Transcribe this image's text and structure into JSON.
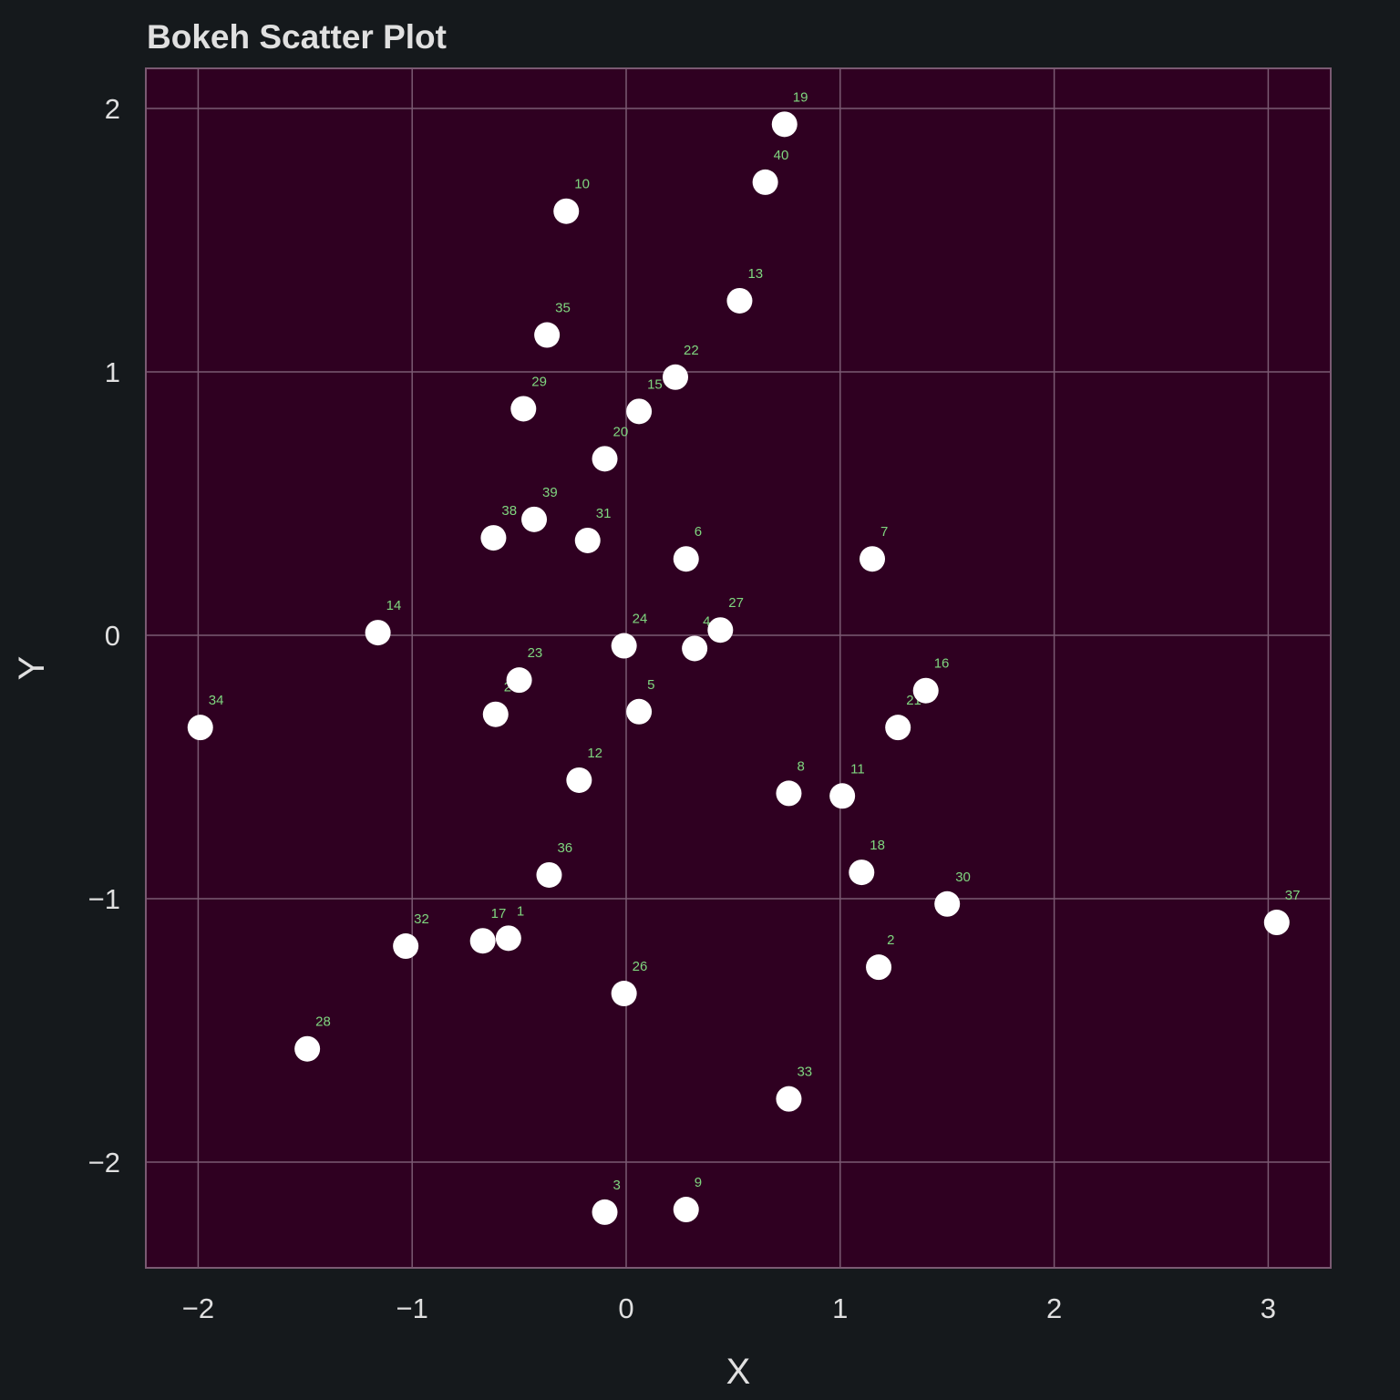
{
  "chart_data": {
    "type": "scatter",
    "title": "Bokeh Scatter Plot",
    "xlabel": "X",
    "ylabel": "Y",
    "xlim": [
      -2.25,
      3.28
    ],
    "ylim": [
      -2.4,
      2.15
    ],
    "xticks": [
      -2,
      -1,
      0,
      1,
      2,
      3
    ],
    "yticks": [
      -2,
      -1,
      0,
      1,
      2
    ],
    "xtick_labels": [
      "−2",
      "−1",
      "0",
      "1",
      "2",
      "3"
    ],
    "ytick_labels": [
      "−2",
      "−1",
      "0",
      "1",
      "2"
    ],
    "grid": true,
    "colors": {
      "background": "#15191c",
      "plot_bg": "#2f0021",
      "grid": "#7a5a72",
      "point": "#ffffff",
      "label": "#7fd67f",
      "text": "#e0e0e0"
    },
    "points": [
      {
        "id": "1",
        "x": -0.55,
        "y": -1.15
      },
      {
        "id": "2",
        "x": 1.18,
        "y": -1.26
      },
      {
        "id": "3",
        "x": -0.1,
        "y": -2.19
      },
      {
        "id": "4",
        "x": 0.32,
        "y": -0.05
      },
      {
        "id": "5",
        "x": 0.06,
        "y": -0.29
      },
      {
        "id": "6",
        "x": 0.28,
        "y": 0.29
      },
      {
        "id": "7",
        "x": 1.15,
        "y": 0.29
      },
      {
        "id": "8",
        "x": 0.76,
        "y": -0.6
      },
      {
        "id": "9",
        "x": 0.28,
        "y": -2.18
      },
      {
        "id": "10",
        "x": -0.28,
        "y": 1.61
      },
      {
        "id": "11",
        "x": 1.01,
        "y": -0.61
      },
      {
        "id": "12",
        "x": -0.22,
        "y": -0.55
      },
      {
        "id": "13",
        "x": 0.53,
        "y": 1.27
      },
      {
        "id": "14",
        "x": -1.16,
        "y": 0.01
      },
      {
        "id": "15",
        "x": 0.06,
        "y": 0.85
      },
      {
        "id": "16",
        "x": 1.4,
        "y": -0.21
      },
      {
        "id": "17",
        "x": -0.67,
        "y": -1.16
      },
      {
        "id": "18",
        "x": 1.1,
        "y": -0.9
      },
      {
        "id": "19",
        "x": 0.74,
        "y": 1.94
      },
      {
        "id": "20",
        "x": -0.1,
        "y": 0.67
      },
      {
        "id": "21",
        "x": 1.27,
        "y": -0.35
      },
      {
        "id": "22",
        "x": 0.23,
        "y": 0.98
      },
      {
        "id": "23",
        "x": -0.5,
        "y": -0.17
      },
      {
        "id": "24",
        "x": -0.01,
        "y": -0.04
      },
      {
        "id": "25",
        "x": -0.61,
        "y": -0.3
      },
      {
        "id": "26",
        "x": -0.01,
        "y": -1.36
      },
      {
        "id": "27",
        "x": 0.44,
        "y": 0.02
      },
      {
        "id": "28",
        "x": -1.49,
        "y": -1.57
      },
      {
        "id": "29",
        "x": -0.48,
        "y": 0.86
      },
      {
        "id": "30",
        "x": 1.5,
        "y": -1.02
      },
      {
        "id": "31",
        "x": -0.18,
        "y": 0.36
      },
      {
        "id": "32",
        "x": -1.03,
        "y": -1.18
      },
      {
        "id": "33",
        "x": 0.76,
        "y": -1.76
      },
      {
        "id": "34",
        "x": -1.99,
        "y": -0.35
      },
      {
        "id": "35",
        "x": -0.37,
        "y": 1.14
      },
      {
        "id": "36",
        "x": -0.36,
        "y": -0.91
      },
      {
        "id": "37",
        "x": 3.04,
        "y": -1.09
      },
      {
        "id": "38",
        "x": -0.62,
        "y": 0.37
      },
      {
        "id": "39",
        "x": -0.43,
        "y": 0.44
      },
      {
        "id": "40",
        "x": 0.65,
        "y": 1.72
      }
    ]
  }
}
